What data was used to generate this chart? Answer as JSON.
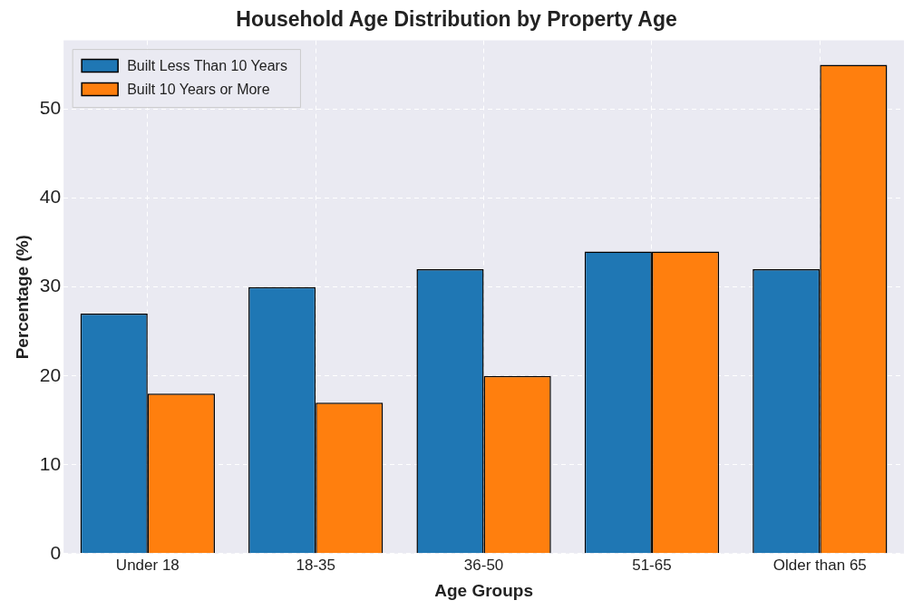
{
  "chart_data": {
    "type": "bar",
    "title": "Household Age Distribution by Property Age",
    "xlabel": "Age Groups",
    "ylabel": "Percentage (%)",
    "categories": [
      "Under 18",
      "18-35",
      "36-50",
      "51-65",
      "Older than 65"
    ],
    "series": [
      {
        "name": "Built Less Than 10 Years",
        "color": "#1f77b4",
        "values": [
          27,
          30,
          32,
          34,
          32
        ]
      },
      {
        "name": "Built 10 Years or More",
        "color": "#ff7f0e",
        "values": [
          18,
          17,
          20,
          34,
          55
        ]
      }
    ],
    "ylim": [
      0,
      57.75
    ],
    "yticks": [
      0,
      10,
      20,
      30,
      40,
      50
    ],
    "grid": true,
    "legend": "top left"
  }
}
